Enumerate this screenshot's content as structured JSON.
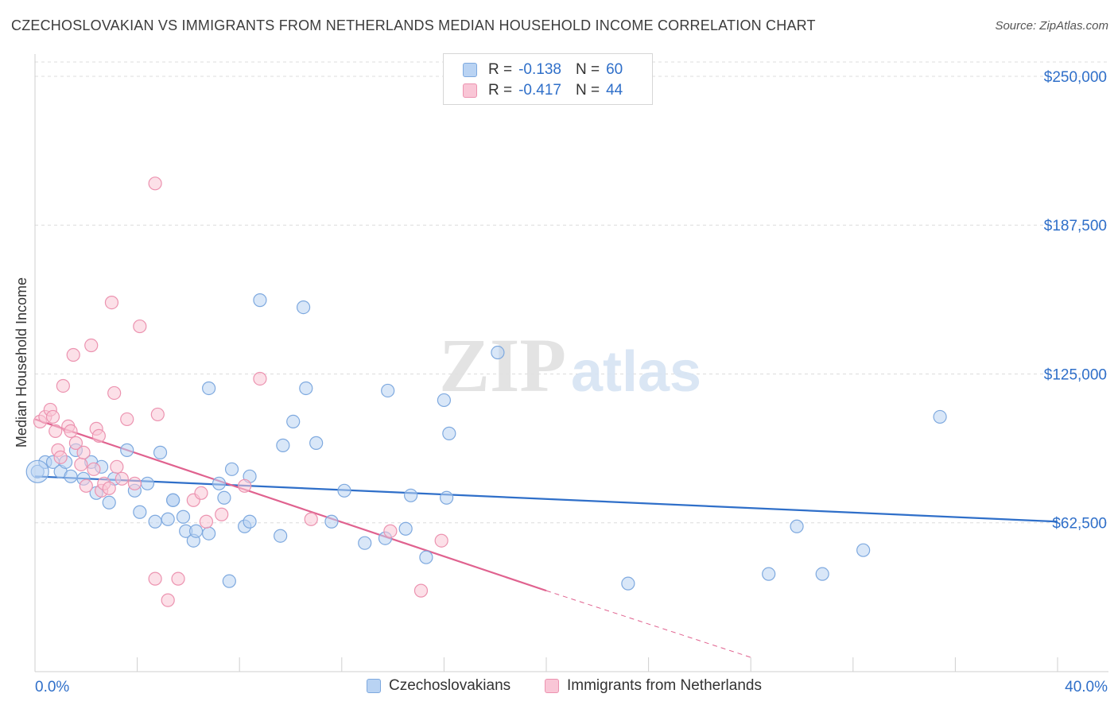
{
  "header": {
    "title": "CZECHOSLOVAKIAN VS IMMIGRANTS FROM NETHERLANDS MEDIAN HOUSEHOLD INCOME CORRELATION CHART",
    "source": "Source: ZipAtlas.com"
  },
  "watermark": {
    "zip": "ZIP",
    "atlas": "atlas"
  },
  "legend": {
    "rows": [
      {
        "r_label": "R =",
        "r_value": "-0.138",
        "n_label": "N =",
        "n_value": "60",
        "color": "#b9d3f3",
        "border": "#7ea9df"
      },
      {
        "r_label": "R =",
        "r_value": "-0.417",
        "n_label": "N =",
        "n_value": "44",
        "color": "#f9c6d6",
        "border": "#ec93b0"
      }
    ]
  },
  "bottom_legend": [
    "Czechoslovakians",
    "Immigrants from Netherlands"
  ],
  "chart_data": {
    "type": "scatter",
    "title": "CZECHOSLOVAKIAN VS IMMIGRANTS FROM NETHERLANDS MEDIAN HOUSEHOLD INCOME CORRELATION CHART",
    "ylabel": "Median Household Income",
    "xlabel": "",
    "x_tick_labels": [
      "0.0%",
      "40.0%"
    ],
    "y_tick_labels": [
      "$250,000",
      "$187,500",
      "$125,000",
      "$62,500"
    ],
    "y_ticks": [
      250000,
      187500,
      125000,
      62500
    ],
    "xlim": [
      0,
      40
    ],
    "ylim": [
      0,
      256000
    ],
    "grid": true,
    "legend_position": "top-center",
    "colors": {
      "blue": "#2f6fc9",
      "pink": "#e0628f",
      "blue_fill": "#b9d3f3",
      "pink_fill": "#f9c6d6",
      "axis_text": "#2f6fc9"
    },
    "series": [
      {
        "name": "Czechoslovakians",
        "color": "#2f6fc9",
        "points": [
          [
            0.1,
            84000
          ],
          [
            0.4,
            88000
          ],
          [
            0.7,
            88000
          ],
          [
            1.0,
            84000
          ],
          [
            1.4,
            82000
          ],
          [
            1.6,
            93000
          ],
          [
            1.9,
            81000
          ],
          [
            2.2,
            88000
          ],
          [
            2.4,
            75000
          ],
          [
            2.6,
            86000
          ],
          [
            2.9,
            71000
          ],
          [
            3.1,
            81000
          ],
          [
            3.6,
            93000
          ],
          [
            3.9,
            76000
          ],
          [
            4.1,
            67000
          ],
          [
            4.4,
            79000
          ],
          [
            4.7,
            63000
          ],
          [
            4.9,
            92000
          ],
          [
            5.2,
            64000
          ],
          [
            5.4,
            72000
          ],
          [
            5.8,
            65000
          ],
          [
            5.9,
            59000
          ],
          [
            6.2,
            55000
          ],
          [
            6.3,
            59000
          ],
          [
            6.8,
            58000
          ],
          [
            6.8,
            119000
          ],
          [
            7.2,
            79000
          ],
          [
            7.6,
            38000
          ],
          [
            8.2,
            61000
          ],
          [
            7.4,
            73000
          ],
          [
            7.7,
            85000
          ],
          [
            8.4,
            63000
          ],
          [
            8.4,
            82000
          ],
          [
            8.8,
            156000
          ],
          [
            9.6,
            57000
          ],
          [
            9.7,
            95000
          ],
          [
            10.1,
            105000
          ],
          [
            10.5,
            153000
          ],
          [
            10.6,
            119000
          ],
          [
            11.0,
            96000
          ],
          [
            11.6,
            63000
          ],
          [
            12.1,
            76000
          ],
          [
            12.9,
            54000
          ],
          [
            13.7,
            56000
          ],
          [
            13.8,
            118000
          ],
          [
            14.5,
            60000
          ],
          [
            14.7,
            74000
          ],
          [
            15.3,
            48000
          ],
          [
            16.0,
            114000
          ],
          [
            16.2,
            100000
          ],
          [
            16.1,
            73000
          ],
          [
            18.1,
            134000
          ],
          [
            23.2,
            37000
          ],
          [
            28.7,
            41000
          ],
          [
            29.8,
            61000
          ],
          [
            30.8,
            41000
          ],
          [
            32.4,
            51000
          ],
          [
            35.4,
            107000
          ],
          [
            1.2,
            88000
          ],
          [
            5.4,
            72000
          ]
        ]
      },
      {
        "name": "Immigrants from Netherlands",
        "color": "#e0628f",
        "points": [
          [
            0.2,
            105000
          ],
          [
            0.4,
            107000
          ],
          [
            0.6,
            110000
          ],
          [
            0.7,
            107000
          ],
          [
            0.8,
            101000
          ],
          [
            0.9,
            93000
          ],
          [
            1.1,
            120000
          ],
          [
            1.3,
            103000
          ],
          [
            1.4,
            101000
          ],
          [
            1.5,
            133000
          ],
          [
            1.6,
            96000
          ],
          [
            1.8,
            87000
          ],
          [
            1.9,
            92000
          ],
          [
            2.0,
            78000
          ],
          [
            2.2,
            137000
          ],
          [
            2.3,
            85000
          ],
          [
            2.4,
            102000
          ],
          [
            2.5,
            99000
          ],
          [
            2.6,
            76000
          ],
          [
            2.7,
            79000
          ],
          [
            2.9,
            77000
          ],
          [
            3.0,
            155000
          ],
          [
            3.1,
            117000
          ],
          [
            3.2,
            86000
          ],
          [
            3.4,
            81000
          ],
          [
            3.6,
            106000
          ],
          [
            3.9,
            79000
          ],
          [
            4.1,
            145000
          ],
          [
            4.7,
            205000
          ],
          [
            4.8,
            108000
          ],
          [
            4.7,
            39000
          ],
          [
            5.2,
            30000
          ],
          [
            5.6,
            39000
          ],
          [
            6.2,
            72000
          ],
          [
            6.5,
            75000
          ],
          [
            6.7,
            63000
          ],
          [
            7.3,
            66000
          ],
          [
            8.2,
            78000
          ],
          [
            8.8,
            123000
          ],
          [
            10.8,
            64000
          ],
          [
            13.9,
            59000
          ],
          [
            15.1,
            34000
          ],
          [
            15.9,
            55000
          ],
          [
            1.0,
            90000
          ]
        ]
      }
    ],
    "trend_lines": [
      {
        "series": "Czechoslovakians",
        "x": [
          0,
          40
        ],
        "y": [
          82000,
          63000
        ],
        "style": "solid"
      },
      {
        "series": "Immigrants from Netherlands",
        "x": [
          0,
          20
        ],
        "y": [
          106000,
          34000
        ],
        "style": "solid"
      },
      {
        "series": "Immigrants from Netherlands",
        "x": [
          20,
          28
        ],
        "y": [
          34000,
          6000
        ],
        "style": "dashed"
      }
    ]
  }
}
